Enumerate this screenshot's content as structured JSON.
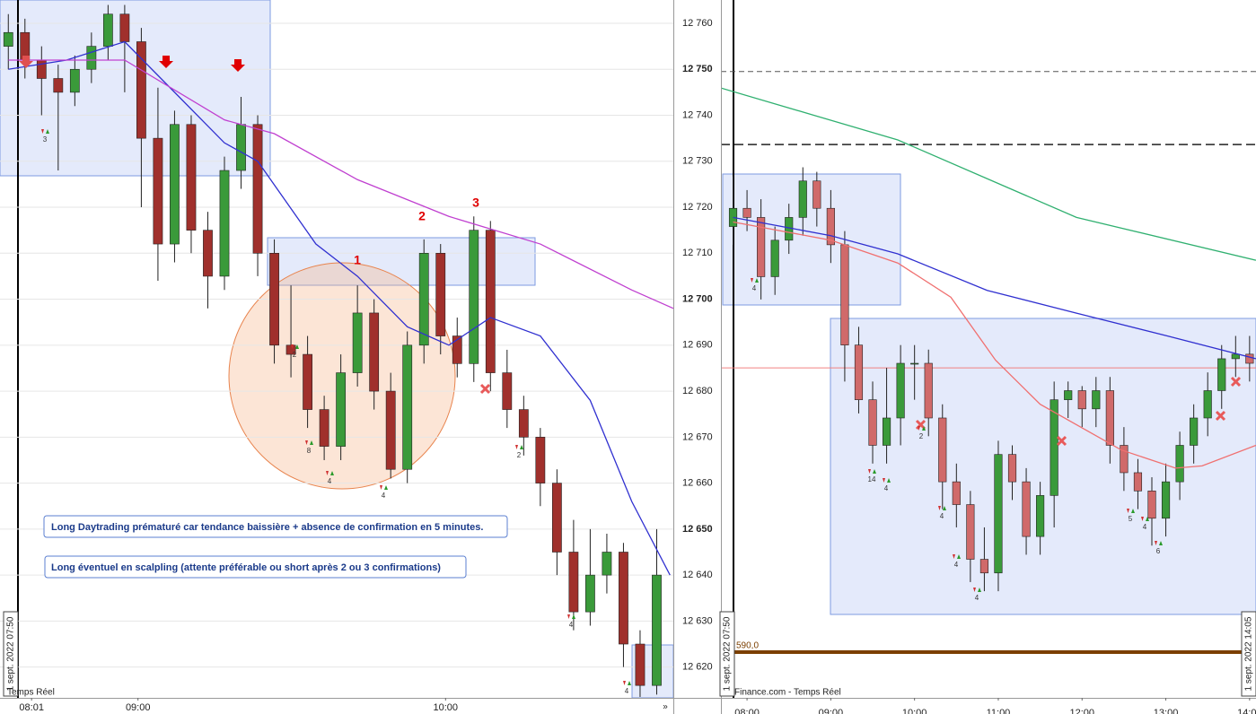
{
  "chart_data": [
    {
      "type": "candlestick",
      "up_color": "#3a9a3a",
      "down_color": "#a0302c",
      "xlim": [
        -0.5,
        40
      ],
      "ylim": [
        12613.3,
        12765.07
      ],
      "xticks": [
        {
          "value": 1.4,
          "label": "08:01"
        },
        {
          "value": 7.8,
          "label": "09:00"
        },
        {
          "value": 26.3,
          "label": "10:00"
        }
      ],
      "yticks": [
        {
          "value": 12620,
          "label": "12 620"
        },
        {
          "value": 12630,
          "label": "12 630"
        },
        {
          "value": 12640,
          "label": "12 640"
        },
        {
          "value": 12650,
          "label": "12 650"
        },
        {
          "value": 12660,
          "label": "12 660"
        },
        {
          "value": 12670,
          "label": "12 670"
        },
        {
          "value": 12680,
          "label": "12 680"
        },
        {
          "value": 12690,
          "label": "12 690"
        },
        {
          "value": 12700,
          "label": "12 700"
        },
        {
          "value": 12710,
          "label": "12 710"
        },
        {
          "value": 12720,
          "label": "12 720"
        },
        {
          "value": 12730,
          "label": "12 730"
        },
        {
          "value": 12740,
          "label": "12 740"
        },
        {
          "value": 12750,
          "label": "12 750"
        },
        {
          "value": 12760,
          "label": "12 760"
        }
      ],
      "grid": true,
      "open": [
        12755,
        12758,
        12752,
        12748,
        12745,
        12750,
        12755,
        12762,
        12756,
        12735,
        12712,
        12738,
        12715,
        12705,
        12728,
        12738,
        12710,
        12690,
        12688,
        12676,
        12668,
        12684,
        12697,
        12680,
        12663,
        12690,
        12710,
        12692,
        12686,
        12715,
        12684,
        12676,
        12670,
        12660,
        12645,
        12632,
        12640,
        12645,
        12625,
        12616
      ],
      "high": [
        12762,
        12761,
        12755,
        12751,
        12753,
        12758,
        12764,
        12764,
        12759,
        12746,
        12741,
        12740,
        12719,
        12731,
        12744,
        12740,
        12713,
        12703,
        12692,
        12679,
        12688,
        12703,
        12700,
        12684,
        12693,
        12713,
        12712,
        12696,
        12718,
        12717,
        12689,
        12679,
        12672,
        12663,
        12652,
        12650,
        12649,
        12647,
        12628,
        12650
      ],
      "low": [
        12750,
        12748,
        12740,
        12728,
        12742,
        12747,
        12752,
        12745,
        12720,
        12704,
        12708,
        12710,
        12698,
        12702,
        12724,
        12705,
        12686,
        12683,
        12672,
        12665,
        12665,
        12681,
        12676,
        12661,
        12660,
        12686,
        12688,
        12683,
        12682,
        12680,
        12672,
        12666,
        12655,
        12640,
        12628,
        12629,
        12636,
        12620,
        12613.5,
        12614
      ],
      "close": [
        12758,
        12752,
        12748,
        12745,
        12750,
        12755,
        12762,
        12756,
        12735,
        12712,
        12738,
        12715,
        12705,
        12728,
        12738,
        12710,
        12690,
        12688,
        12676,
        12668,
        12684,
        12697,
        12680,
        12663,
        12690,
        12710,
        12692,
        12686,
        12715,
        12684,
        12676,
        12670,
        12660,
        12645,
        12632,
        12640,
        12645,
        12625,
        12616,
        12640
      ],
      "lines": [
        {
          "color": "#3030d0",
          "x": [
            0,
            3.5,
            7,
            10,
            13,
            15,
            18.5,
            21,
            24,
            26.5,
            29,
            32,
            35,
            37.5,
            39.8
          ],
          "values": [
            12750,
            12752,
            12756,
            12745,
            12734,
            12730,
            12712,
            12705,
            12694,
            12690,
            12696,
            12692,
            12678,
            12656,
            12640
          ]
        },
        {
          "color": "#c040d0",
          "x": [
            0,
            7,
            13,
            16,
            21,
            26.5,
            32,
            37.5,
            40
          ],
          "values": [
            12752,
            12752,
            12739,
            12736,
            12726,
            12718,
            12712,
            12702,
            12698
          ]
        }
      ],
      "annotations": [
        "Long Daytrading prématuré car tendance baissière + absence de confirmation en 5 minutes.",
        "Long éventuel en scalpling (attente préférable ou short après 2 ou 3 confirmations)",
        "1",
        "2",
        "3",
        "1 sept. 2022 07:50",
        "Temps Réel",
        "3",
        "8",
        "4",
        "4",
        "2",
        "2",
        "4",
        "4",
        "»"
      ]
    },
    {
      "type": "candlestick",
      "up_color": "#3a9a3a",
      "down_color": "#d06a6a",
      "xlim": [
        -0.87,
        37.46
      ],
      "ylim": [
        12612.6,
        12765.7
      ],
      "xticks": [
        {
          "value": 1,
          "label": "08:00"
        },
        {
          "value": 7,
          "label": "09:00"
        },
        {
          "value": 13,
          "label": "10:00"
        },
        {
          "value": 19,
          "label": "11:00"
        },
        {
          "value": 25,
          "label": "12:00"
        },
        {
          "value": 31,
          "label": "13:00"
        },
        {
          "value": 37,
          "label": "14:00"
        }
      ],
      "hlines": [
        {
          "value": 12750,
          "color": "#555555",
          "dash": "6 4",
          "width": 1
        },
        {
          "value": 12734,
          "color": "#222222",
          "dash": "10 5",
          "width": 1.5
        },
        {
          "value": 12685,
          "color": "#f08080",
          "dash": "",
          "width": 1
        }
      ],
      "open": [
        12716,
        12720,
        12718,
        12705,
        12713,
        12718,
        12726,
        12720,
        12712,
        12690,
        12678,
        12668,
        12674,
        12686,
        12686,
        12674,
        12660,
        12655,
        12643,
        12640,
        12666,
        12660,
        12648,
        12657,
        12678,
        12680,
        12676,
        12680,
        12668,
        12662,
        12658,
        12652,
        12660,
        12668,
        12674,
        12680,
        12687,
        12688
      ],
      "high": [
        12727,
        12724,
        12722,
        12716,
        12721,
        12729,
        12728,
        12724,
        12715,
        12694,
        12682,
        12685,
        12690,
        12690,
        12689,
        12677,
        12664,
        12658,
        12650,
        12669,
        12668,
        12663,
        12660,
        12682,
        12682,
        12681,
        12683,
        12683,
        12672,
        12665,
        12661,
        12664,
        12671,
        12677,
        12684,
        12690,
        12692,
        12692
      ],
      "low": [
        12712,
        12715,
        12700,
        12701,
        12710,
        12714,
        12716,
        12708,
        12682,
        12675,
        12664,
        12664,
        12668,
        12678,
        12670,
        12654,
        12650,
        12638,
        12636,
        12636,
        12656,
        12644,
        12644,
        12650,
        12674,
        12672,
        12672,
        12664,
        12658,
        12654,
        12646,
        12648,
        12656,
        12664,
        12670,
        12676,
        12683,
        12682
      ],
      "close": [
        12720,
        12718,
        12705,
        12713,
        12718,
        12726,
        12720,
        12712,
        12690,
        12678,
        12668,
        12674,
        12686,
        12686,
        12674,
        12660,
        12655,
        12643,
        12640,
        12666,
        12660,
        12648,
        12657,
        12678,
        12680,
        12676,
        12680,
        12668,
        12662,
        12658,
        12652,
        12660,
        12668,
        12674,
        12680,
        12687,
        12688,
        12686
      ],
      "lines": [
        {
          "color": "#30b070",
          "x": [
            -0.87,
            11.8,
            24.6,
            37.46
          ],
          "values": [
            12746.4,
            12735,
            12718,
            12708.6
          ]
        },
        {
          "color": "#3030d0",
          "x": [
            0,
            7,
            11.8,
            18.2,
            24.6,
            31.1,
            37.46
          ],
          "values": [
            12718,
            12714,
            12710,
            12702,
            12697,
            12692,
            12687
          ]
        },
        {
          "color": "#f07070",
          "x": [
            0,
            7,
            11.8,
            15.6,
            18.8,
            22,
            27.8,
            31.7,
            33.6,
            37.46
          ],
          "values": [
            12717,
            12713,
            12708,
            12700.5,
            12686.7,
            12677,
            12667,
            12663,
            12663.5,
            12668
          ]
        }
      ],
      "annotations": [
        "1 sept. 2022 07:50",
        "1 sept. 2022 14:05",
        "Finance.com - Temps Réel",
        "590,0",
        "4",
        "14",
        "4",
        "2",
        "4",
        "4",
        "4",
        "5",
        "4",
        "6"
      ]
    }
  ]
}
